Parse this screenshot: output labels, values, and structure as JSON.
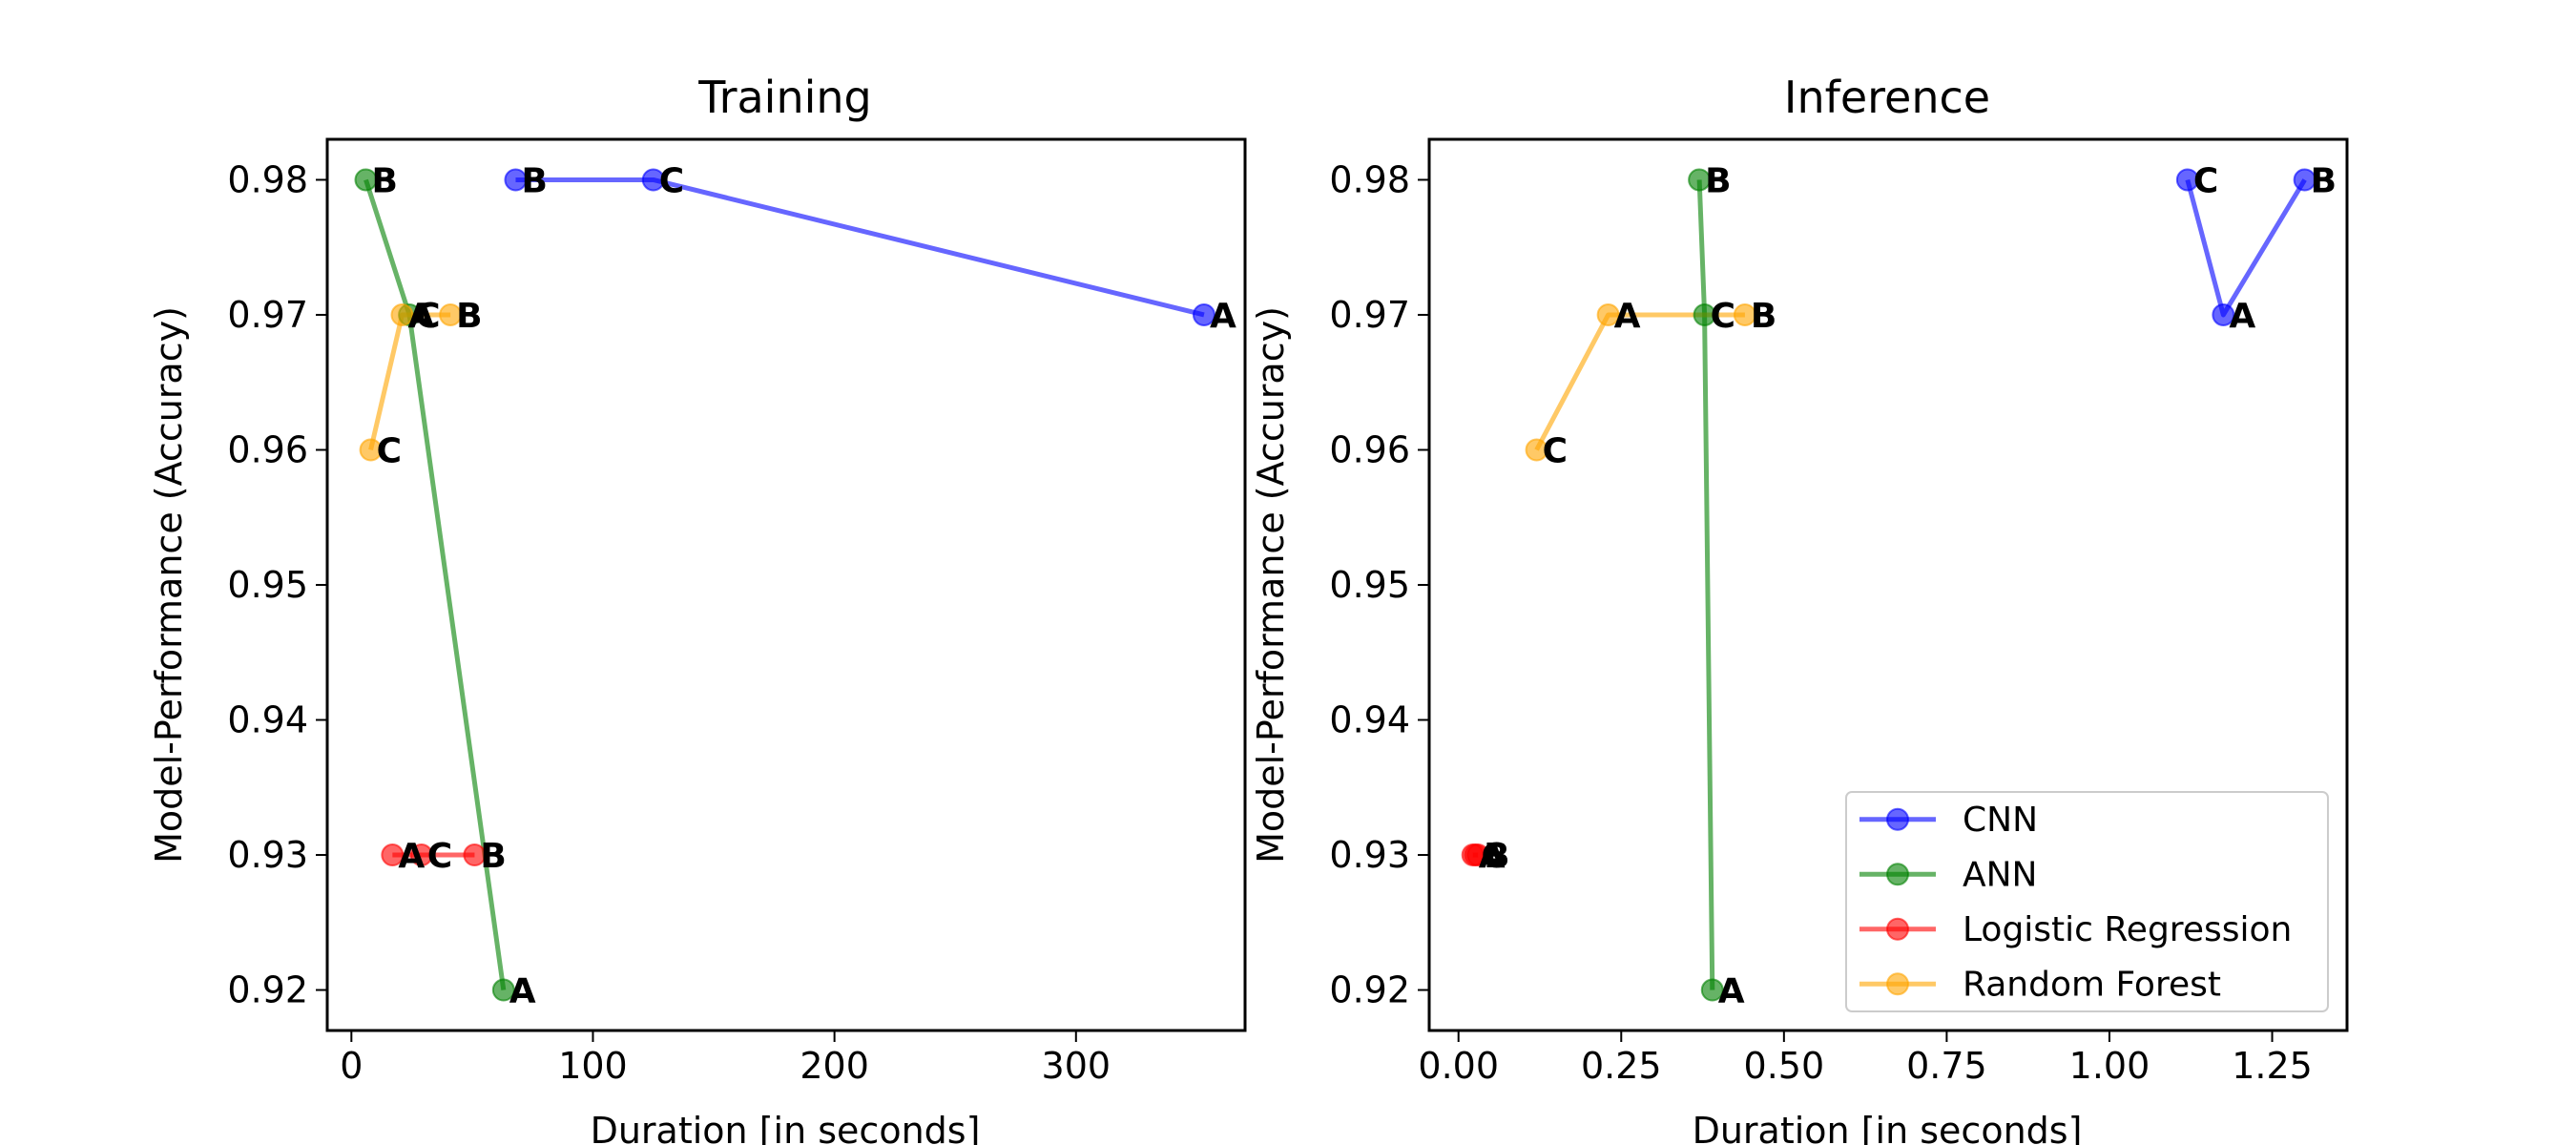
{
  "chart_data": [
    {
      "type": "line",
      "title": "Training",
      "xlabel": "Duration [in seconds]",
      "ylabel": "Model-Performance (Accuracy)",
      "xlim": [
        -10,
        370
      ],
      "ylim": [
        0.917,
        0.983
      ],
      "xticks": [
        0,
        100,
        200,
        300
      ],
      "xtick_labels": [
        "0",
        "100",
        "200",
        "300"
      ],
      "yticks": [
        0.92,
        0.93,
        0.94,
        0.95,
        0.96,
        0.97,
        0.98
      ],
      "ytick_labels": [
        "0.92",
        "0.93",
        "0.94",
        "0.95",
        "0.96",
        "0.97",
        "0.98"
      ],
      "grid": false,
      "legend": null,
      "series": [
        {
          "name": "CNN",
          "color": "#0000ff",
          "points": [
            {
              "label": "B",
              "x": 68,
              "y": 0.98
            },
            {
              "label": "C",
              "x": 125,
              "y": 0.98
            },
            {
              "label": "A",
              "x": 353,
              "y": 0.97
            }
          ]
        },
        {
          "name": "ANN",
          "color": "#008000",
          "points": [
            {
              "label": "B",
              "x": 6,
              "y": 0.98
            },
            {
              "label": "C",
              "x": 24,
              "y": 0.97
            },
            {
              "label": "A",
              "x": 63,
              "y": 0.92
            }
          ]
        },
        {
          "name": "Logistic Regression",
          "color": "#ff0000",
          "points": [
            {
              "label": "A",
              "x": 17,
              "y": 0.93
            },
            {
              "label": "C",
              "x": 29,
              "y": 0.93
            },
            {
              "label": "B",
              "x": 51,
              "y": 0.93
            }
          ]
        },
        {
          "name": "Random Forest",
          "color": "#ffa500",
          "points": [
            {
              "label": "C",
              "x": 8,
              "y": 0.96
            },
            {
              "label": "A",
              "x": 21,
              "y": 0.97
            },
            {
              "label": "B",
              "x": 41,
              "y": 0.97
            }
          ]
        }
      ]
    },
    {
      "type": "line",
      "title": "Inference",
      "xlabel": "Duration [in seconds]",
      "ylabel": "Model-Performance (Accuracy)",
      "xlim": [
        -0.045,
        1.365
      ],
      "ylim": [
        0.917,
        0.983
      ],
      "xticks": [
        0.0,
        0.25,
        0.5,
        0.75,
        1.0,
        1.25
      ],
      "xtick_labels": [
        "0.00",
        "0.25",
        "0.50",
        "0.75",
        "1.00",
        "1.25"
      ],
      "yticks": [
        0.92,
        0.93,
        0.94,
        0.95,
        0.96,
        0.97,
        0.98
      ],
      "ytick_labels": [
        "0.92",
        "0.93",
        "0.94",
        "0.95",
        "0.96",
        "0.97",
        "0.98"
      ],
      "grid": false,
      "legend": "lower-right",
      "series": [
        {
          "name": "CNN",
          "color": "#0000ff",
          "points": [
            {
              "label": "C",
              "x": 1.12,
              "y": 0.98
            },
            {
              "label": "A",
              "x": 1.175,
              "y": 0.97
            },
            {
              "label": "B",
              "x": 1.3,
              "y": 0.98
            }
          ]
        },
        {
          "name": "ANN",
          "color": "#008000",
          "points": [
            {
              "label": "B",
              "x": 0.37,
              "y": 0.98
            },
            {
              "label": "C",
              "x": 0.378,
              "y": 0.97
            },
            {
              "label": "A",
              "x": 0.39,
              "y": 0.92
            }
          ]
        },
        {
          "name": "Logistic Regression",
          "color": "#ff0000",
          "points": [
            {
              "label": "A",
              "x": 0.022,
              "y": 0.93
            },
            {
              "label": "C",
              "x": 0.026,
              "y": 0.93
            },
            {
              "label": "B",
              "x": 0.03,
              "y": 0.93
            }
          ]
        },
        {
          "name": "Random Forest",
          "color": "#ffa500",
          "points": [
            {
              "label": "C",
              "x": 0.12,
              "y": 0.96
            },
            {
              "label": "A",
              "x": 0.23,
              "y": 0.97
            },
            {
              "label": "B",
              "x": 0.44,
              "y": 0.97
            }
          ]
        }
      ]
    }
  ]
}
